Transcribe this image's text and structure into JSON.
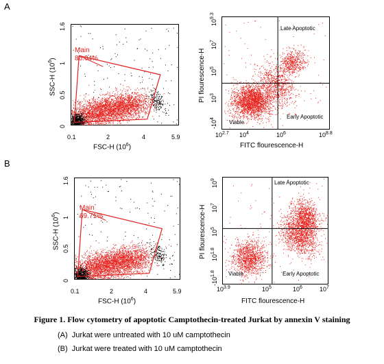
{
  "caption": "Figure 1. Flow cytometry of apoptotic Camptothecin-treated Jurkat by annexin V staining",
  "notes": [
    {
      "tag": "(A)",
      "text": "Jurkat were untreated with 10 uM camptothecin"
    },
    {
      "tag": "(B)",
      "text": "Jurkat were treated with 10 uM camptothecin"
    }
  ],
  "colors": {
    "events": "#e8231e",
    "debris": "#000000",
    "gate": "#e0201e",
    "lines": "#000000"
  },
  "chart_data": [
    {
      "panel": "A",
      "type": "scatter",
      "xlabel": "FSC-H",
      "xlabel_exp": "(10",
      "xlabel_sup": "6",
      "xlabel_close": ")",
      "ylabel": "SSC-H",
      "ylabel_exp": "(10",
      "ylabel_sup": "6",
      "ylabel_close": ")",
      "xlim": [
        0.1,
        5.9
      ],
      "ylim": [
        0,
        1.6
      ],
      "xticks": [
        "0.1",
        "2",
        "4",
        "5.9"
      ],
      "yticks": [
        "0",
        "0.5",
        "1",
        "1.6"
      ],
      "gate": {
        "name": "Main",
        "value": "86.04%",
        "polygon": [
          [
            0.3,
            0.05
          ],
          [
            4.2,
            0.1
          ],
          [
            4.9,
            0.8
          ],
          [
            0.55,
            1.1
          ]
        ]
      }
    },
    {
      "panel": "A",
      "type": "scatter",
      "xlabel": "FITC  flourescence-H",
      "ylabel": "PI flourescence-H",
      "x_scale": "log",
      "y_scale": "log",
      "xticks": [
        {
          "base": "10",
          "exp": "2.7"
        },
        {
          "base": "10",
          "exp": "4"
        },
        {
          "base": "10",
          "exp": "6"
        },
        {
          "base": "10",
          "exp": "8.8"
        }
      ],
      "yticks": [
        {
          "base": "-10",
          "exp": "4"
        },
        {
          "base": "10",
          "exp": "3"
        },
        {
          "base": "10",
          "exp": "5"
        },
        {
          "base": "10",
          "exp": "7"
        },
        {
          "base": "10",
          "exp": "9.3"
        }
      ],
      "quadrants": {
        "x": 5.7,
        "y": 3.7
      },
      "quadrant_labels": {
        "ur": "Late Apoptotic",
        "ll": "Viable",
        "lr": "Early Apoptotic"
      }
    },
    {
      "panel": "B",
      "type": "scatter",
      "xlabel": "FSC-H",
      "xlabel_exp": "(10",
      "xlabel_sup": "6",
      "xlabel_close": ")",
      "ylabel": "SSC-H",
      "ylabel_exp": "(10",
      "ylabel_sup": "6",
      "ylabel_close": ")",
      "xlim": [
        0.1,
        5.9
      ],
      "ylim": [
        0,
        1.6
      ],
      "xticks": [
        "0.1",
        "2",
        "4",
        "5.9"
      ],
      "yticks": [
        "0",
        "0.5",
        "1",
        "1.6"
      ],
      "gate": {
        "name": "Main",
        "value": "69.71%",
        "polygon": [
          [
            0.3,
            0.05
          ],
          [
            4.2,
            0.1
          ],
          [
            4.9,
            0.8
          ],
          [
            0.55,
            1.1
          ]
        ]
      }
    },
    {
      "panel": "B",
      "type": "scatter",
      "xlabel": "FITC  flourescence-H",
      "ylabel": "PI flourescence-H",
      "x_scale": "log",
      "y_scale": "log",
      "xticks": [
        {
          "base": "10",
          "exp": "3.9"
        },
        {
          "base": "10",
          "exp": "5"
        },
        {
          "base": "10",
          "exp": "6"
        },
        {
          "base": "10",
          "exp": "7"
        }
      ],
      "yticks": [
        {
          "base": "-10",
          "exp": "1.8"
        },
        {
          "base": "10",
          "exp": "1.8"
        },
        {
          "base": "10",
          "exp": "5"
        },
        {
          "base": "10",
          "exp": "7"
        },
        {
          "base": "10",
          "exp": "9"
        }
      ],
      "quadrants": {
        "x": 5.35,
        "y": 4.85
      },
      "quadrant_labels": {
        "ur": "Late Apoptotic",
        "ll": "Viable",
        "lr": "Early Apoptotic"
      }
    }
  ]
}
